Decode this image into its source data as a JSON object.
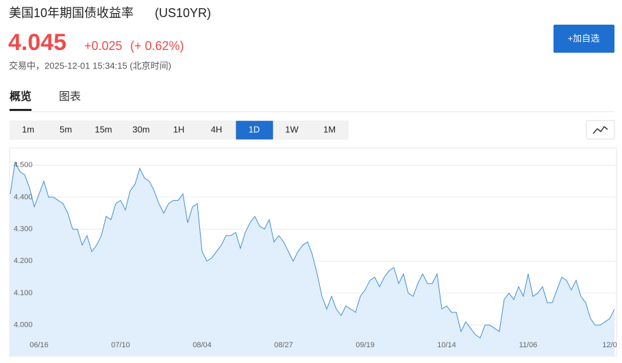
{
  "header": {
    "title": "美国10年期国债收益率",
    "symbol": "(US10YR)"
  },
  "quote": {
    "price": "4.045",
    "change": "+0.025",
    "change_pct": "(+ 0.62%)",
    "status": "交易中，2025-12-01 15:34:15 (北京时间)"
  },
  "watch_button": "+加自选",
  "tabs": [
    "概览",
    "图表"
  ],
  "intervals": [
    "1m",
    "5m",
    "15m",
    "30m",
    "1H",
    "4H",
    "1D",
    "1W",
    "1M"
  ],
  "active_interval": 6,
  "chart_data": {
    "type": "area",
    "categories": [
      null,
      null,
      null,
      null,
      null,
      null,
      "06/16",
      null,
      null,
      null,
      null,
      null,
      null,
      null,
      null,
      null,
      null,
      null,
      null,
      null,
      null,
      null,
      null,
      "07/10",
      null,
      null,
      null,
      null,
      null,
      null,
      null,
      null,
      null,
      null,
      null,
      null,
      null,
      null,
      null,
      null,
      "08/04",
      null,
      null,
      null,
      null,
      null,
      null,
      null,
      null,
      null,
      null,
      null,
      null,
      null,
      null,
      null,
      null,
      "08/27",
      null,
      null,
      null,
      null,
      null,
      null,
      null,
      null,
      null,
      null,
      null,
      null,
      null,
      null,
      null,
      null,
      "09/19",
      null,
      null,
      null,
      null,
      null,
      null,
      null,
      null,
      null,
      null,
      null,
      null,
      null,
      null,
      null,
      null,
      "10/14",
      null,
      null,
      null,
      null,
      null,
      null,
      null,
      null,
      null,
      null,
      null,
      null,
      null,
      null,
      null,
      null,
      "11/06",
      null,
      null,
      null,
      null,
      null,
      null,
      null,
      null,
      null,
      null,
      null,
      null,
      null,
      null,
      null,
      null,
      "12/0",
      null
    ],
    "values": [
      4.41,
      4.51,
      4.48,
      4.47,
      4.43,
      4.37,
      4.41,
      4.45,
      4.4,
      4.4,
      4.39,
      4.38,
      4.35,
      4.3,
      4.3,
      4.25,
      4.28,
      4.23,
      4.25,
      4.28,
      4.34,
      4.33,
      4.38,
      4.39,
      4.36,
      4.42,
      4.44,
      4.49,
      4.46,
      4.45,
      4.42,
      4.38,
      4.35,
      4.38,
      4.39,
      4.39,
      4.41,
      4.32,
      4.37,
      4.38,
      4.23,
      4.2,
      4.21,
      4.23,
      4.25,
      4.28,
      4.28,
      4.29,
      4.24,
      4.29,
      4.32,
      4.34,
      4.31,
      4.3,
      4.33,
      4.26,
      4.28,
      4.26,
      4.23,
      4.2,
      4.23,
      4.25,
      4.26,
      4.22,
      4.16,
      4.09,
      4.05,
      4.09,
      4.05,
      4.03,
      4.06,
      4.05,
      4.04,
      4.09,
      4.11,
      4.14,
      4.15,
      4.12,
      4.15,
      4.17,
      4.18,
      4.13,
      4.16,
      4.1,
      4.09,
      4.13,
      4.16,
      4.13,
      4.13,
      4.16,
      4.05,
      4.06,
      4.04,
      4.04,
      3.98,
      4.01,
      3.99,
      3.97,
      3.96,
      4.0,
      4.0,
      3.99,
      3.98,
      4.08,
      4.1,
      4.08,
      4.12,
      4.09,
      4.16,
      4.09,
      4.1,
      4.12,
      4.07,
      4.07,
      4.11,
      4.15,
      4.14,
      4.11,
      4.14,
      4.09,
      4.07,
      4.02,
      4.0,
      4.0,
      4.01,
      4.02,
      4.05
    ],
    "color": "#3d8fd6",
    "fill": "#e1eefb",
    "ylim": [
      3.905,
      4.554
    ],
    "yticks": [
      {
        "value": 4.0,
        "label": "4.000"
      },
      {
        "value": 4.1,
        "label": "4.100"
      },
      {
        "value": 4.2,
        "label": "4.200"
      },
      {
        "value": 4.3,
        "label": "4.300"
      },
      {
        "value": 4.4,
        "label": "4.400"
      },
      {
        "value": 4.5,
        "label": "4.500"
      }
    ],
    "grid": true
  }
}
